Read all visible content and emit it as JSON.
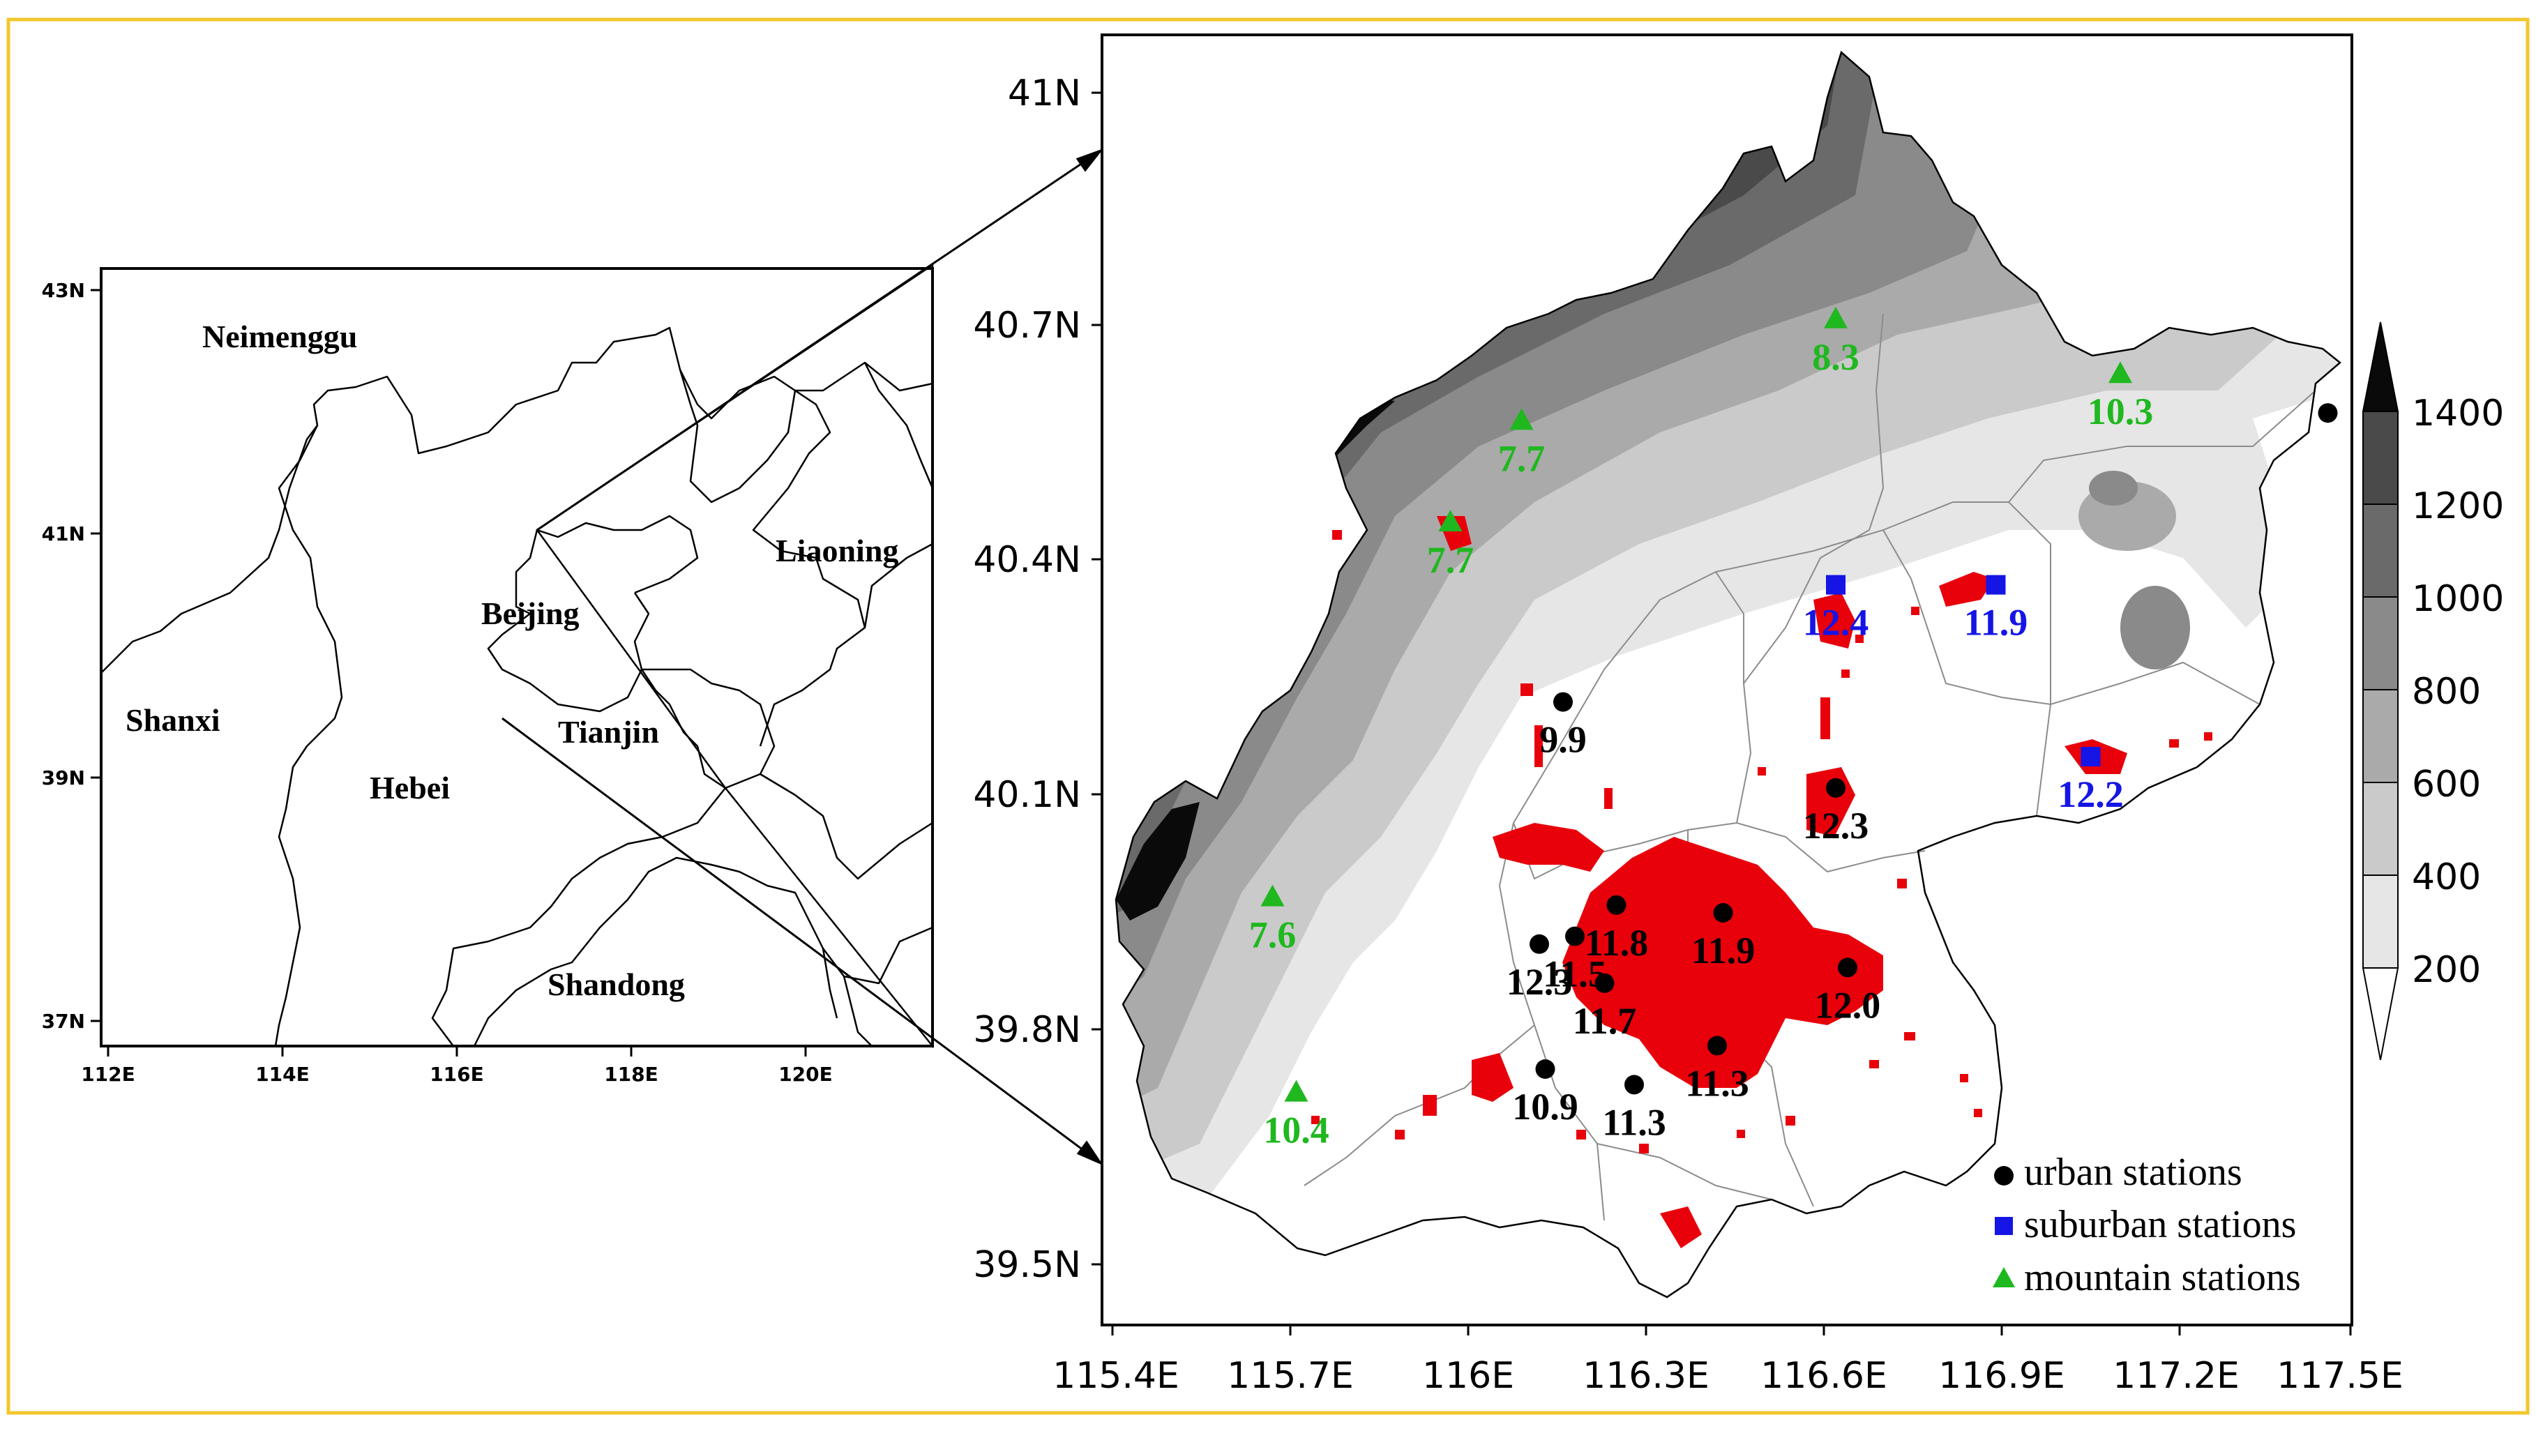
{
  "frame_color": "#F2C72E",
  "overview_map": {
    "lat_ticks": [
      "43N",
      "41N",
      "39N",
      "37N"
    ],
    "lon_ticks": [
      "112E",
      "114E",
      "116E",
      "118E",
      "120E"
    ],
    "regions": [
      "Neimenggu",
      "Liaoning",
      "Beijing",
      "Shanxi",
      "Tianjin",
      "Hebei",
      "Shandong"
    ]
  },
  "detail_map": {
    "lat_ticks": [
      "41N",
      "40.7N",
      "40.4N",
      "40.1N",
      "39.8N",
      "39.5N"
    ],
    "lon_ticks": [
      "115.4E",
      "115.7E",
      "116E",
      "116.3E",
      "116.6E",
      "116.9E",
      "117.2E",
      "117.5E"
    ],
    "colorbar": {
      "labels": [
        "1400",
        "1200",
        "1000",
        "800",
        "600",
        "400",
        "200"
      ],
      "colors": [
        "#0a0a0a",
        "#4a4a4a",
        "#6a6a6a",
        "#8a8a8a",
        "#aaaaaa",
        "#cacaca",
        "#e6e6e6",
        "#ffffff"
      ]
    },
    "urban_area_color": "#e8000b",
    "station_types": {
      "urban": {
        "color": "#000000",
        "shape": "circle"
      },
      "suburban": {
        "color": "#1515e6",
        "shape": "square"
      },
      "mountain": {
        "color": "#1fb81f",
        "shape": "triangle"
      }
    },
    "stations": [
      {
        "type": "mountain",
        "label": "8.3",
        "lon": 116.62,
        "lat": 40.71
      },
      {
        "type": "mountain",
        "label": "10.3",
        "lon": 117.1,
        "lat": 40.64
      },
      {
        "type": "mountain",
        "label": "7.7",
        "lon": 116.09,
        "lat": 40.58
      },
      {
        "type": "mountain",
        "label": "7.7",
        "lon": 115.97,
        "lat": 40.45
      },
      {
        "type": "mountain",
        "label": "7.6",
        "lon": 115.67,
        "lat": 39.97
      },
      {
        "type": "mountain",
        "label": "10.4",
        "lon": 115.71,
        "lat": 39.72
      },
      {
        "type": "suburban",
        "label": "12.4",
        "lon": 116.62,
        "lat": 40.37
      },
      {
        "type": "suburban",
        "label": "11.9",
        "lon": 116.89,
        "lat": 40.37
      },
      {
        "type": "suburban",
        "label": "12.2",
        "lon": 117.05,
        "lat": 40.15
      },
      {
        "type": "urban",
        "label": "9.9",
        "lon": 116.16,
        "lat": 40.22
      },
      {
        "type": "urban",
        "label": "12.3",
        "lon": 116.62,
        "lat": 40.11
      },
      {
        "type": "urban",
        "label": "11.8",
        "lon": 116.25,
        "lat": 39.96
      },
      {
        "type": "urban",
        "label": "11.5",
        "lon": 116.18,
        "lat": 39.92
      },
      {
        "type": "urban",
        "label": "12.3",
        "lon": 116.12,
        "lat": 39.91
      },
      {
        "type": "urban",
        "label": "11.9",
        "lon": 116.43,
        "lat": 39.95
      },
      {
        "type": "urban",
        "label": "11.7",
        "lon": 116.23,
        "lat": 39.86
      },
      {
        "type": "urban",
        "label": "12.0",
        "lon": 116.64,
        "lat": 39.88
      },
      {
        "type": "urban",
        "label": "11.3",
        "lon": 116.42,
        "lat": 39.78
      },
      {
        "type": "urban",
        "label": "11.3",
        "lon": 116.28,
        "lat": 39.73
      },
      {
        "type": "urban",
        "label": "10.9",
        "lon": 116.13,
        "lat": 39.75
      },
      {
        "type": "urban",
        "label": "",
        "lon": 117.45,
        "lat": 40.59
      }
    ],
    "legend": [
      {
        "type": "urban",
        "label": "urban stations"
      },
      {
        "type": "suburban",
        "label": "suburban stations"
      },
      {
        "type": "mountain",
        "label": "mountain stations"
      }
    ]
  }
}
